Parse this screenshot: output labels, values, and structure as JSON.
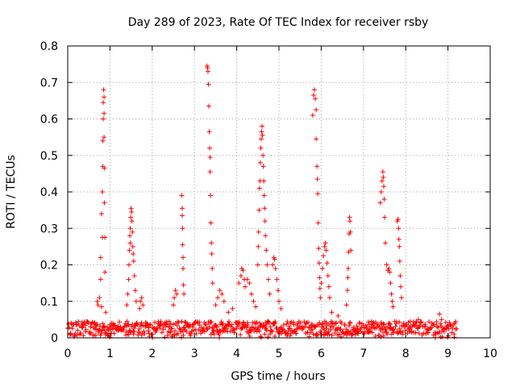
{
  "chart_data": {
    "type": "scatter",
    "title": "Day 289 of 2023, Rate Of TEC Index for receiver rsby",
    "xlabel": "GPS time / hours",
    "ylabel": "ROTI / TECUs",
    "xlim": [
      0,
      10
    ],
    "ylim": [
      0,
      0.8
    ],
    "xticks": [
      "0",
      "1",
      "2",
      "3",
      "4",
      "5",
      "6",
      "7",
      "8",
      "9",
      "10"
    ],
    "yticks": [
      "0",
      "0.1",
      "0.2",
      "0.3",
      "0.4",
      "0.5",
      "0.6",
      "0.7",
      "0.8"
    ],
    "grid": true,
    "marker": "+",
    "color": "#ff0000",
    "baseline": {
      "x_start": 0.0,
      "x_end": 9.2,
      "typical_min": 0.0,
      "typical_max": 0.045
    },
    "series": [
      {
        "name": "ROTI",
        "points": [
          [
            0.7,
            0.1
          ],
          [
            0.72,
            0.09
          ],
          [
            0.75,
            0.11
          ],
          [
            0.78,
            0.16
          ],
          [
            0.78,
            0.22
          ],
          [
            0.8,
            0.34
          ],
          [
            0.82,
            0.275
          ],
          [
            0.82,
            0.4
          ],
          [
            0.83,
            0.47
          ],
          [
            0.83,
            0.54
          ],
          [
            0.84,
            0.6
          ],
          [
            0.84,
            0.645
          ],
          [
            0.85,
            0.68
          ],
          [
            0.86,
            0.66
          ],
          [
            0.86,
            0.615
          ],
          [
            0.86,
            0.55
          ],
          [
            0.87,
            0.465
          ],
          [
            0.87,
            0.37
          ],
          [
            0.88,
            0.275
          ],
          [
            0.88,
            0.18
          ],
          [
            0.8,
            0.085
          ],
          [
            0.9,
            0.07
          ],
          [
            1.4,
            0.09
          ],
          [
            1.42,
            0.12
          ],
          [
            1.44,
            0.16
          ],
          [
            1.45,
            0.2
          ],
          [
            1.46,
            0.24
          ],
          [
            1.47,
            0.28
          ],
          [
            1.48,
            0.3
          ],
          [
            1.49,
            0.33
          ],
          [
            1.5,
            0.355
          ],
          [
            1.51,
            0.345
          ],
          [
            1.52,
            0.32
          ],
          [
            1.53,
            0.29
          ],
          [
            1.54,
            0.25
          ],
          [
            1.56,
            0.21
          ],
          [
            1.58,
            0.17
          ],
          [
            1.6,
            0.13
          ],
          [
            1.62,
            0.1
          ],
          [
            1.55,
            0.23
          ],
          [
            1.48,
            0.26
          ],
          [
            1.7,
            0.08
          ],
          [
            1.72,
            0.1
          ],
          [
            1.75,
            0.11
          ],
          [
            1.78,
            0.09
          ],
          [
            2.5,
            0.09
          ],
          [
            2.52,
            0.11
          ],
          [
            2.55,
            0.13
          ],
          [
            2.58,
            0.12
          ],
          [
            2.7,
            0.39
          ],
          [
            2.71,
            0.355
          ],
          [
            2.71,
            0.335
          ],
          [
            2.72,
            0.3
          ],
          [
            2.72,
            0.255
          ],
          [
            2.73,
            0.22
          ],
          [
            2.73,
            0.19
          ],
          [
            2.74,
            0.145
          ],
          [
            2.75,
            0.12
          ],
          [
            3.3,
            0.745
          ],
          [
            3.31,
            0.74
          ],
          [
            3.32,
            0.73
          ],
          [
            3.33,
            0.695
          ],
          [
            3.34,
            0.635
          ],
          [
            3.35,
            0.565
          ],
          [
            3.36,
            0.52
          ],
          [
            3.37,
            0.495
          ],
          [
            3.37,
            0.455
          ],
          [
            3.38,
            0.39
          ],
          [
            3.39,
            0.315
          ],
          [
            3.4,
            0.26
          ],
          [
            3.41,
            0.23
          ],
          [
            3.42,
            0.19
          ],
          [
            3.43,
            0.15
          ],
          [
            3.5,
            0.09
          ],
          [
            3.55,
            0.11
          ],
          [
            3.6,
            0.13
          ],
          [
            3.65,
            0.12
          ],
          [
            3.7,
            0.1
          ],
          [
            3.8,
            0.07
          ],
          [
            3.9,
            0.08
          ],
          [
            4.05,
            0.15
          ],
          [
            4.1,
            0.17
          ],
          [
            4.12,
            0.19
          ],
          [
            4.15,
            0.185
          ],
          [
            4.18,
            0.16
          ],
          [
            4.2,
            0.14
          ],
          [
            4.25,
            0.16
          ],
          [
            4.3,
            0.15
          ],
          [
            4.35,
            0.12
          ],
          [
            4.4,
            0.1
          ],
          [
            4.45,
            0.085
          ],
          [
            4.5,
            0.2
          ],
          [
            4.51,
            0.25
          ],
          [
            4.52,
            0.29
          ],
          [
            4.53,
            0.35
          ],
          [
            4.54,
            0.41
          ],
          [
            4.55,
            0.43
          ],
          [
            4.56,
            0.48
          ],
          [
            4.57,
            0.52
          ],
          [
            4.58,
            0.545
          ],
          [
            4.59,
            0.565
          ],
          [
            4.6,
            0.58
          ],
          [
            4.61,
            0.555
          ],
          [
            4.62,
            0.5
          ],
          [
            4.63,
            0.47
          ],
          [
            4.64,
            0.43
          ],
          [
            4.65,
            0.39
          ],
          [
            4.66,
            0.355
          ],
          [
            4.67,
            0.32
          ],
          [
            4.68,
            0.28
          ],
          [
            4.7,
            0.24
          ],
          [
            4.72,
            0.2
          ],
          [
            4.75,
            0.16
          ],
          [
            4.78,
            0.12
          ],
          [
            4.85,
            0.2
          ],
          [
            4.88,
            0.22
          ],
          [
            4.9,
            0.215
          ],
          [
            4.92,
            0.19
          ],
          [
            4.95,
            0.16
          ],
          [
            4.98,
            0.13
          ],
          [
            5.0,
            0.1
          ],
          [
            5.05,
            0.08
          ],
          [
            5.8,
            0.61
          ],
          [
            5.82,
            0.665
          ],
          [
            5.84,
            0.68
          ],
          [
            5.86,
            0.655
          ],
          [
            5.88,
            0.625
          ],
          [
            5.88,
            0.545
          ],
          [
            5.9,
            0.47
          ],
          [
            5.91,
            0.435
          ],
          [
            5.92,
            0.395
          ],
          [
            5.93,
            0.315
          ],
          [
            5.94,
            0.245
          ],
          [
            5.95,
            0.205
          ],
          [
            5.96,
            0.165
          ],
          [
            5.97,
            0.135
          ],
          [
            5.98,
            0.11
          ],
          [
            6.0,
            0.15
          ],
          [
            6.03,
            0.19
          ],
          [
            6.05,
            0.225
          ],
          [
            6.08,
            0.25
          ],
          [
            6.1,
            0.26
          ],
          [
            6.12,
            0.24
          ],
          [
            6.14,
            0.205
          ],
          [
            6.16,
            0.17
          ],
          [
            6.18,
            0.14
          ],
          [
            6.2,
            0.11
          ],
          [
            6.25,
            0.07
          ],
          [
            6.4,
            0.06
          ],
          [
            6.6,
            0.09
          ],
          [
            6.62,
            0.13
          ],
          [
            6.63,
            0.165
          ],
          [
            6.64,
            0.19
          ],
          [
            6.65,
            0.235
          ],
          [
            6.66,
            0.285
          ],
          [
            6.67,
            0.33
          ],
          [
            6.68,
            0.32
          ],
          [
            6.69,
            0.29
          ],
          [
            6.7,
            0.24
          ],
          [
            7.4,
            0.37
          ],
          [
            7.42,
            0.4
          ],
          [
            7.44,
            0.43
          ],
          [
            7.46,
            0.455
          ],
          [
            7.47,
            0.44
          ],
          [
            7.48,
            0.415
          ],
          [
            7.49,
            0.38
          ],
          [
            7.5,
            0.33
          ],
          [
            7.52,
            0.26
          ],
          [
            7.55,
            0.2
          ],
          [
            7.58,
            0.185
          ],
          [
            7.6,
            0.19
          ],
          [
            7.62,
            0.18
          ],
          [
            7.64,
            0.15
          ],
          [
            7.66,
            0.12
          ],
          [
            7.68,
            0.1
          ],
          [
            7.7,
            0.085
          ],
          [
            7.8,
            0.32
          ],
          [
            7.82,
            0.325
          ],
          [
            7.83,
            0.3
          ],
          [
            7.84,
            0.27
          ],
          [
            7.85,
            0.25
          ],
          [
            7.86,
            0.21
          ],
          [
            7.87,
            0.17
          ],
          [
            7.88,
            0.14
          ],
          [
            7.9,
            0.11
          ],
          [
            8.3,
            0.05
          ],
          [
            8.8,
            0.065
          ],
          [
            8.85,
            0.05
          ]
        ]
      }
    ]
  }
}
